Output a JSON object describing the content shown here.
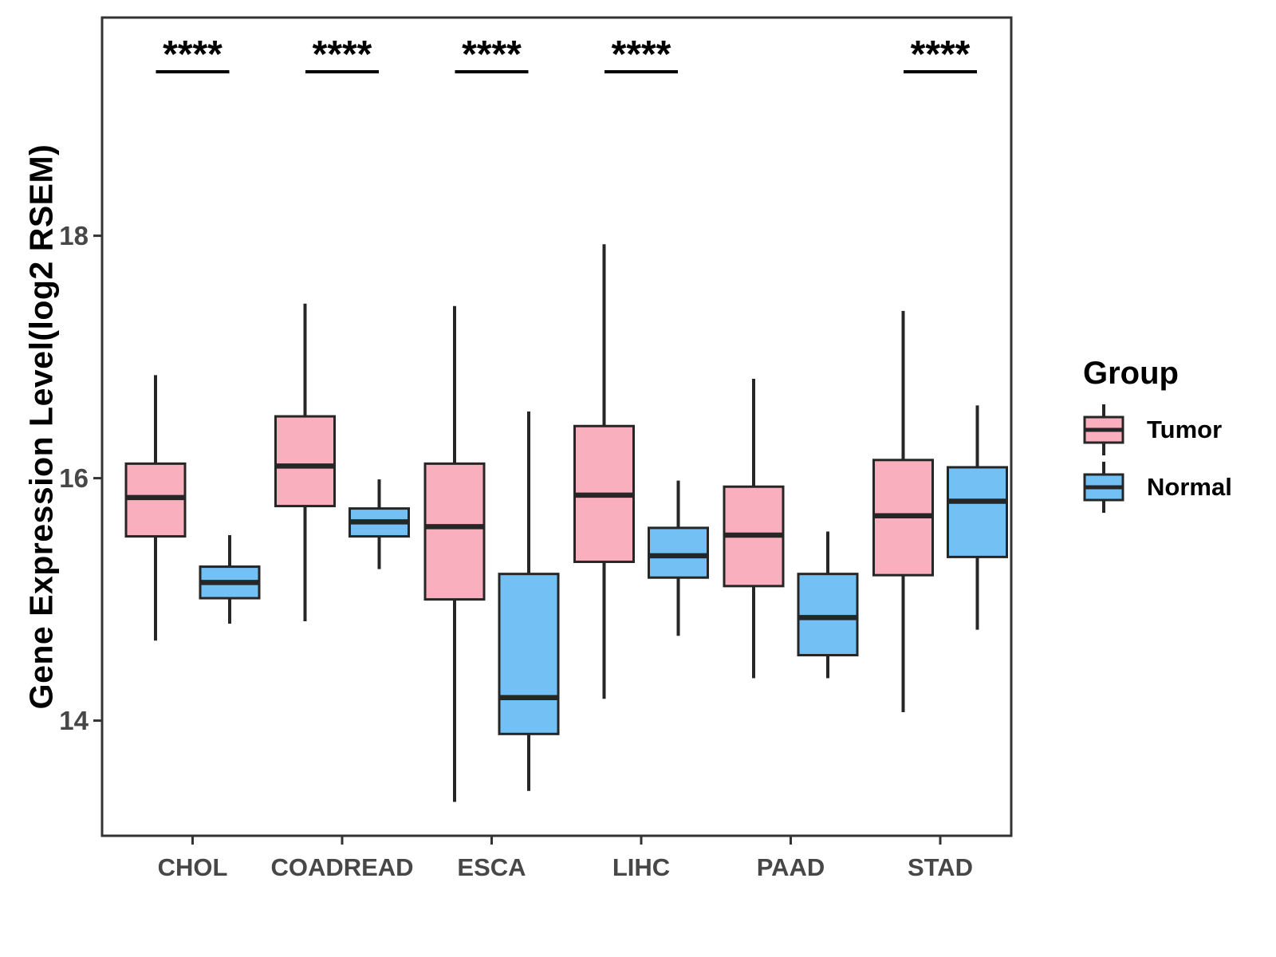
{
  "colors": {
    "tumor_fill": "#FAAFBE",
    "normal_fill": "#73C0F4",
    "box_stroke": "#262626",
    "axis_stroke": "#333333",
    "tick_label": "#474747",
    "text": "#000000",
    "background": "#ffffff"
  },
  "chart_data": {
    "type": "boxplot",
    "title": "",
    "xlabel": "",
    "ylabel": "Gene Expression Level(log2 RSEM)",
    "categories": [
      "CHOL",
      "COADREAD",
      "ESCA",
      "LIHC",
      "PAAD",
      "STAD"
    ],
    "y_ticks": [
      14,
      16,
      18
    ],
    "ylim": [
      13.05,
      19.8
    ],
    "grid": false,
    "legend_position": "right",
    "groups": [
      {
        "name": "Tumor",
        "fill": "#FAAFBE"
      },
      {
        "name": "Normal",
        "fill": "#73C0F4"
      }
    ],
    "boxes": {
      "Tumor": [
        {
          "category": "CHOL",
          "low": 14.66,
          "q1": 15.52,
          "median": 15.84,
          "q3": 16.12,
          "high": 16.85
        },
        {
          "category": "COADREAD",
          "low": 14.82,
          "q1": 15.77,
          "median": 16.1,
          "q3": 16.51,
          "high": 17.44
        },
        {
          "category": "ESCA",
          "low": 13.33,
          "q1": 15.0,
          "median": 15.6,
          "q3": 16.12,
          "high": 17.42
        },
        {
          "category": "LIHC",
          "low": 14.18,
          "q1": 15.31,
          "median": 15.86,
          "q3": 16.43,
          "high": 17.93
        },
        {
          "category": "PAAD",
          "low": 14.35,
          "q1": 15.11,
          "median": 15.53,
          "q3": 15.93,
          "high": 16.82
        },
        {
          "category": "STAD",
          "low": 14.07,
          "q1": 15.2,
          "median": 15.69,
          "q3": 16.15,
          "high": 17.38
        }
      ],
      "Normal": [
        {
          "category": "CHOL",
          "low": 14.8,
          "q1": 15.01,
          "median": 15.14,
          "q3": 15.27,
          "high": 15.53
        },
        {
          "category": "COADREAD",
          "low": 15.25,
          "q1": 15.52,
          "median": 15.64,
          "q3": 15.75,
          "high": 15.99
        },
        {
          "category": "ESCA",
          "low": 13.42,
          "q1": 13.89,
          "median": 14.19,
          "q3": 15.21,
          "high": 16.55
        },
        {
          "category": "LIHC",
          "low": 14.7,
          "q1": 15.18,
          "median": 15.36,
          "q3": 15.59,
          "high": 15.98
        },
        {
          "category": "PAAD",
          "low": 14.35,
          "q1": 14.54,
          "median": 14.85,
          "q3": 15.21,
          "high": 15.56
        },
        {
          "category": "STAD",
          "low": 14.75,
          "q1": 15.35,
          "median": 15.81,
          "q3": 16.09,
          "high": 16.6
        }
      ]
    },
    "significance": [
      {
        "category": "CHOL",
        "label": "****"
      },
      {
        "category": "COADREAD",
        "label": "****"
      },
      {
        "category": "ESCA",
        "label": "****"
      },
      {
        "category": "LIHC",
        "label": "****"
      },
      {
        "category": "STAD",
        "label": "****"
      }
    ],
    "legend": {
      "title": "Group",
      "entries": [
        {
          "label": "Tumor",
          "fill": "#FAAFBE"
        },
        {
          "label": "Normal",
          "fill": "#73C0F4"
        }
      ]
    }
  }
}
